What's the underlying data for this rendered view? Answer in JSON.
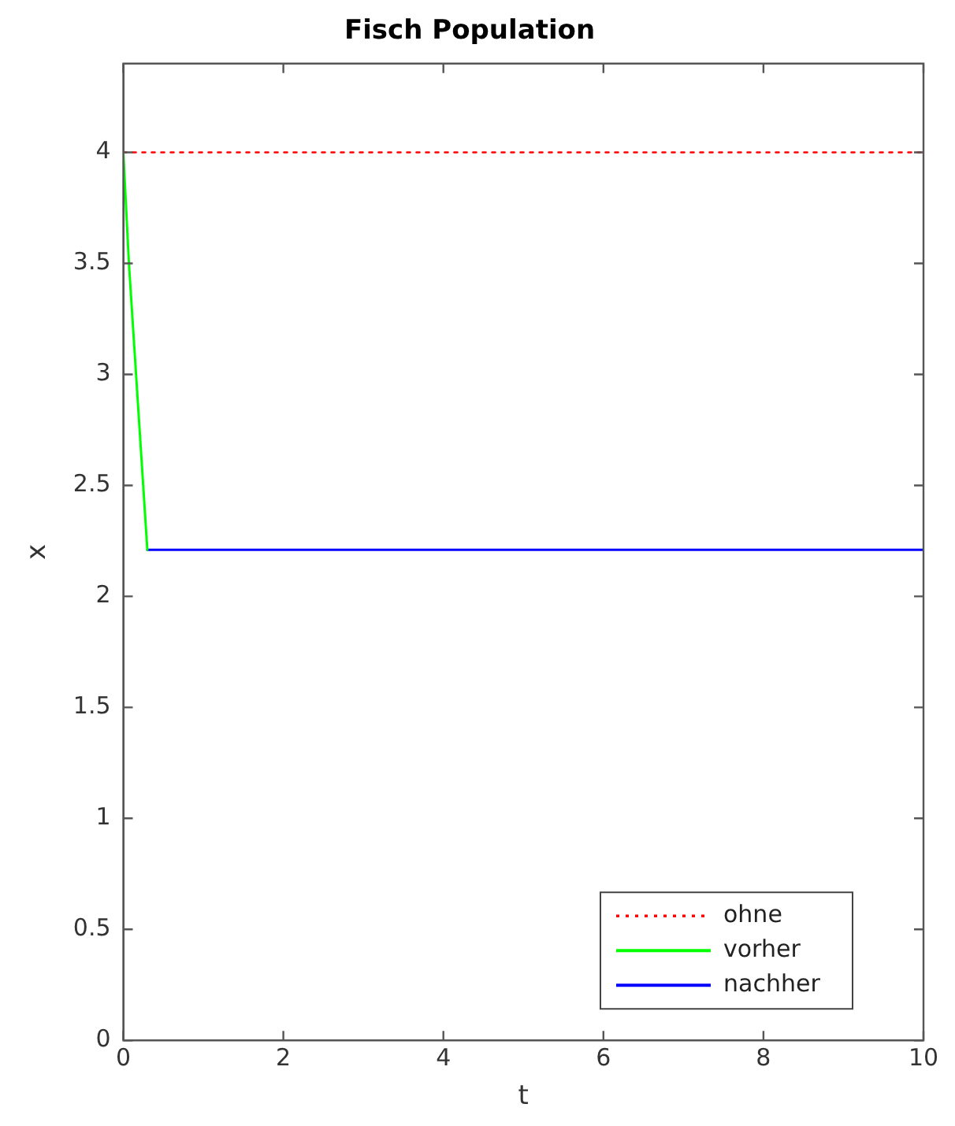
{
  "chart_data": {
    "type": "line",
    "title": "Fisch Population",
    "xlabel": "t",
    "ylabel": "x",
    "xlim": [
      0,
      10
    ],
    "xticks": [
      0,
      2,
      4,
      6,
      8,
      10
    ],
    "ylim": [
      0,
      4.4
    ],
    "yticks": [
      0,
      0.5,
      1,
      1.5,
      2,
      2.5,
      3,
      3.5,
      4
    ],
    "grid": false,
    "legend": "bottom right",
    "marker": "none",
    "series": [
      {
        "name": "ohne",
        "color": "#ff0000",
        "line_style": "dotted",
        "x": [
          0,
          10
        ],
        "values": [
          4,
          4
        ]
      },
      {
        "name": "vorher",
        "color": "#00ff00",
        "line_style": "solid",
        "x": [
          0,
          0.07,
          0.3
        ],
        "values": [
          4,
          3.5,
          2.21
        ]
      },
      {
        "name": "nachher",
        "color": "#0000ff",
        "line_style": "solid",
        "x": [
          0.3,
          10
        ],
        "values": [
          2.21,
          2.21
        ]
      }
    ]
  }
}
